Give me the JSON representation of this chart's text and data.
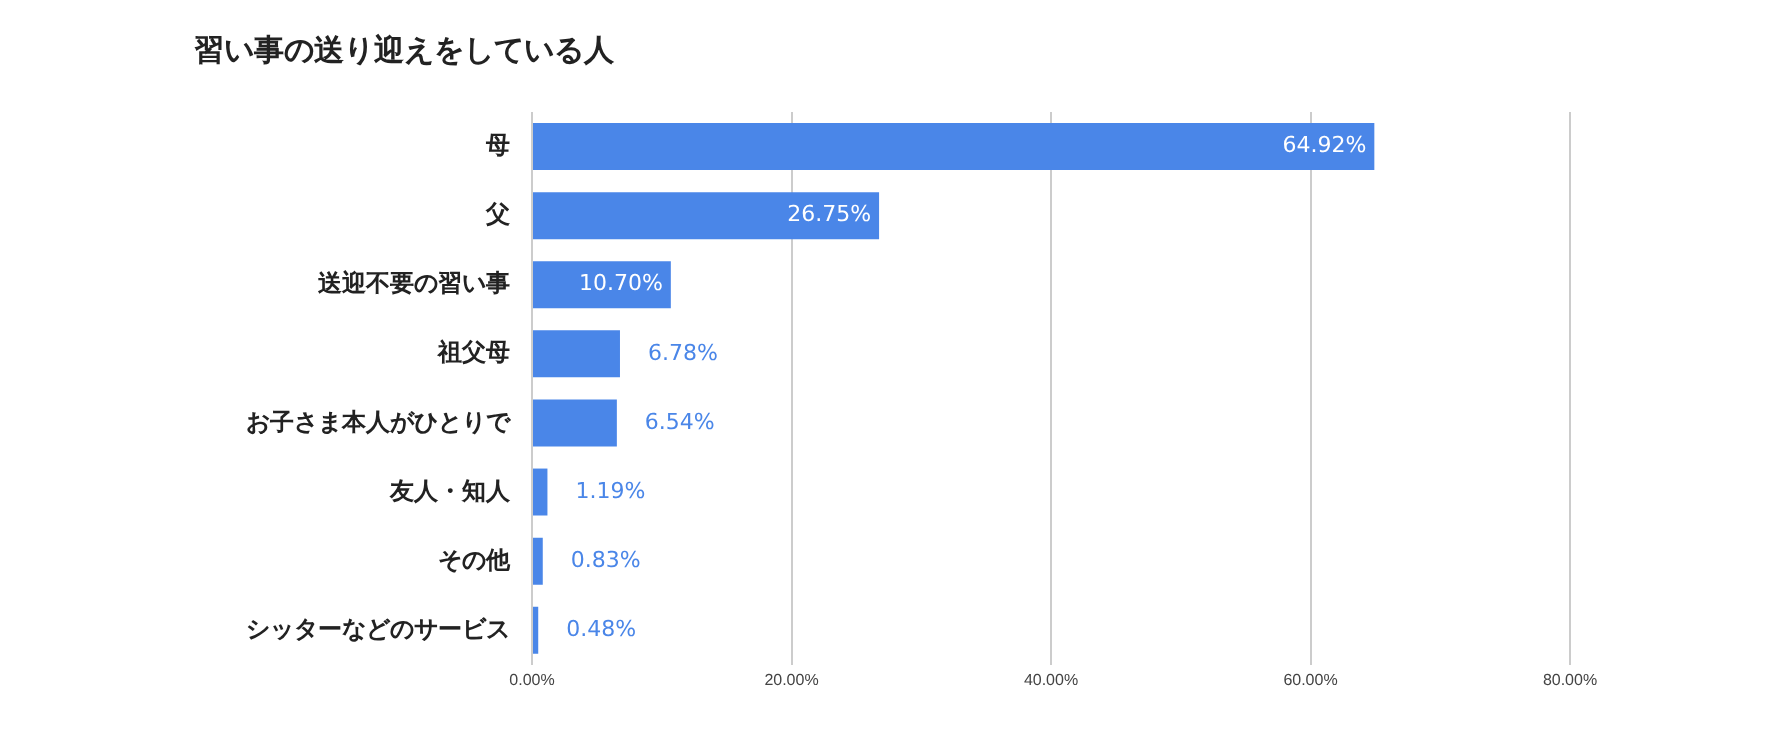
{
  "chart_data": {
    "type": "bar",
    "orientation": "horizontal",
    "title": "習い事の送り迎えをしている人",
    "categories": [
      "母",
      "父",
      "送迎不要の習い事",
      "祖父母",
      "お子さま本人がひとりで",
      "友人・知人",
      "その他",
      "シッターなどのサービス"
    ],
    "values": [
      64.92,
      26.75,
      10.7,
      6.78,
      6.54,
      1.19,
      0.83,
      0.48
    ],
    "value_labels": [
      "64.92%",
      "26.75%",
      "10.70%",
      "6.78%",
      "6.54%",
      "1.19%",
      "0.83%",
      "0.48%"
    ],
    "color": "#4a86e8",
    "xlim": [
      0,
      80
    ],
    "xticks": [
      {
        "value": 0,
        "label": "0.00%"
      },
      {
        "value": 20,
        "label": "20.00%"
      },
      {
        "value": 40,
        "label": "40.00%"
      },
      {
        "value": 60,
        "label": "60.00%"
      },
      {
        "value": 80,
        "label": "80.00%"
      }
    ],
    "grid": "x",
    "legend": false
  }
}
